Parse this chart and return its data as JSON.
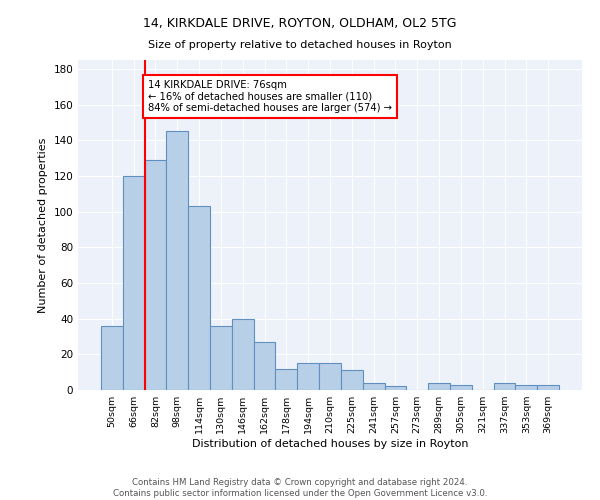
{
  "title1": "14, KIRKDALE DRIVE, ROYTON, OLDHAM, OL2 5TG",
  "title2": "Size of property relative to detached houses in Royton",
  "xlabel": "Distribution of detached houses by size in Royton",
  "ylabel": "Number of detached properties",
  "bar_labels": [
    "50sqm",
    "66sqm",
    "82sqm",
    "98sqm",
    "114sqm",
    "130sqm",
    "146sqm",
    "162sqm",
    "178sqm",
    "194sqm",
    "210sqm",
    "225sqm",
    "241sqm",
    "257sqm",
    "273sqm",
    "289sqm",
    "305sqm",
    "321sqm",
    "337sqm",
    "353sqm",
    "369sqm"
  ],
  "bar_values": [
    36,
    120,
    129,
    145,
    103,
    36,
    40,
    27,
    12,
    15,
    15,
    11,
    4,
    2,
    0,
    4,
    3,
    0,
    4,
    3,
    3
  ],
  "bar_color": "#b8cfe8",
  "bar_edge_color": "#6090c0",
  "red_line_x": 1.5,
  "annotation_text": "14 KIRKDALE DRIVE: 76sqm\n← 16% of detached houses are smaller (110)\n84% of semi-detached houses are larger (574) →",
  "annotation_box_color": "white",
  "annotation_box_edge_color": "red",
  "ylim": [
    0,
    185
  ],
  "yticks": [
    0,
    20,
    40,
    60,
    80,
    100,
    120,
    140,
    160,
    180
  ],
  "footer1": "Contains HM Land Registry data © Crown copyright and database right 2024.",
  "footer2": "Contains public sector information licensed under the Open Government Licence v3.0.",
  "bg_color": "#edf2fa"
}
